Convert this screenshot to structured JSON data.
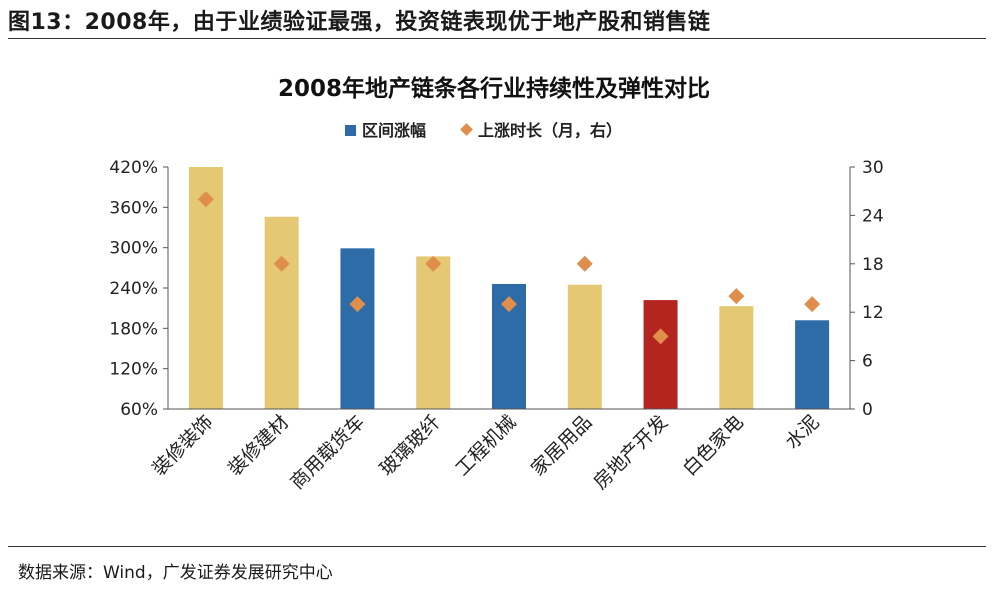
{
  "figure": {
    "title": "图13：2008年，由于业绩验证最强，投资链表现优于地产股和销售链",
    "source": "数据来源：Wind，广发证券发展研究中心"
  },
  "colors": {
    "sand": "#E5C874",
    "blue": "#2E6CA8",
    "red": "#B5251F",
    "marker": "#E08E4C",
    "axis": "#555555"
  },
  "chart_data": {
    "type": "bar",
    "title": "2008年地产链条各行业持续性及弹性对比",
    "categories": [
      "装修装饰",
      "装修建材",
      "商用载货车",
      "玻璃玻纤",
      "工程机械",
      "家居用品",
      "房地产开发",
      "白色家电",
      "水泥"
    ],
    "series": [
      {
        "name": "区间涨幅",
        "axis": "left",
        "kind": "bar",
        "values": [
          4.2,
          3.46,
          2.99,
          2.87,
          2.46,
          2.45,
          2.22,
          2.13,
          1.92
        ],
        "bar_colors": [
          "sand",
          "sand",
          "blue",
          "sand",
          "blue",
          "sand",
          "red",
          "sand",
          "blue"
        ]
      },
      {
        "name": "上涨时长（月，右）",
        "axis": "right",
        "kind": "marker",
        "values": [
          26,
          18,
          13,
          18,
          13,
          18,
          9,
          14,
          13
        ]
      }
    ],
    "left_axis": {
      "min": 0.6,
      "max": 4.2,
      "ticks": [
        "60%",
        "120%",
        "180%",
        "240%",
        "300%",
        "360%",
        "420%"
      ]
    },
    "right_axis": {
      "min": 0,
      "max": 30,
      "ticks": [
        "0",
        "6",
        "12",
        "18",
        "24",
        "30"
      ]
    },
    "xlabel": "",
    "ylabel": "",
    "grid": false,
    "legend_position": "top"
  }
}
